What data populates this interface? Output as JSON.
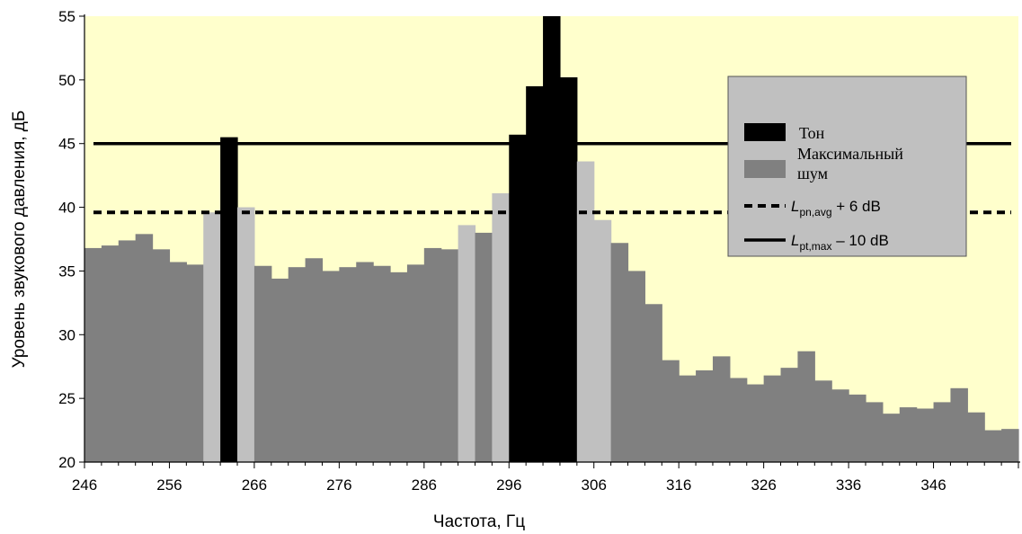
{
  "chart_data": {
    "type": "bar",
    "xlabel": "Частота, Гц",
    "ylabel": "Уровень звукового давления, дБ",
    "x_ticks": [
      "246",
      "256",
      "266",
      "276",
      "286",
      "296",
      "306",
      "316",
      "326",
      "336",
      "346"
    ],
    "y_ticks": [
      "20",
      "25",
      "30",
      "35",
      "40",
      "45",
      "50",
      "55"
    ],
    "xlim": [
      246,
      356
    ],
    "ylim": [
      20,
      55
    ],
    "bin_width_hz": 2,
    "bars": [
      {
        "x": 246,
        "value": 36.8,
        "kind": "noise"
      },
      {
        "x": 248,
        "value": 37.0,
        "kind": "noise"
      },
      {
        "x": 250,
        "value": 37.4,
        "kind": "noise"
      },
      {
        "x": 252,
        "value": 37.9,
        "kind": "noise"
      },
      {
        "x": 254,
        "value": 36.7,
        "kind": "noise"
      },
      {
        "x": 256,
        "value": 35.7,
        "kind": "noise"
      },
      {
        "x": 258,
        "value": 35.5,
        "kind": "noise"
      },
      {
        "x": 260,
        "value": 39.6,
        "kind": "neighbor"
      },
      {
        "x": 262,
        "value": 45.5,
        "kind": "tone"
      },
      {
        "x": 264,
        "value": 40.0,
        "kind": "neighbor"
      },
      {
        "x": 266,
        "value": 35.4,
        "kind": "noise"
      },
      {
        "x": 268,
        "value": 34.4,
        "kind": "noise"
      },
      {
        "x": 270,
        "value": 35.3,
        "kind": "noise"
      },
      {
        "x": 272,
        "value": 36.0,
        "kind": "noise"
      },
      {
        "x": 274,
        "value": 35.0,
        "kind": "noise"
      },
      {
        "x": 276,
        "value": 35.3,
        "kind": "noise"
      },
      {
        "x": 278,
        "value": 35.7,
        "kind": "noise"
      },
      {
        "x": 280,
        "value": 35.4,
        "kind": "noise"
      },
      {
        "x": 282,
        "value": 34.9,
        "kind": "noise"
      },
      {
        "x": 284,
        "value": 35.5,
        "kind": "noise"
      },
      {
        "x": 286,
        "value": 36.8,
        "kind": "noise"
      },
      {
        "x": 288,
        "value": 36.7,
        "kind": "noise"
      },
      {
        "x": 290,
        "value": 38.6,
        "kind": "neighbor"
      },
      {
        "x": 292,
        "value": 38.0,
        "kind": "noise"
      },
      {
        "x": 294,
        "value": 41.1,
        "kind": "neighbor"
      },
      {
        "x": 296,
        "value": 45.7,
        "kind": "tone"
      },
      {
        "x": 298,
        "value": 49.5,
        "kind": "tone"
      },
      {
        "x": 300,
        "value": 55.0,
        "kind": "tone"
      },
      {
        "x": 302,
        "value": 50.2,
        "kind": "tone"
      },
      {
        "x": 304,
        "value": 43.6,
        "kind": "neighbor"
      },
      {
        "x": 306,
        "value": 39.0,
        "kind": "neighbor"
      },
      {
        "x": 308,
        "value": 37.2,
        "kind": "noise"
      },
      {
        "x": 310,
        "value": 35.0,
        "kind": "noise"
      },
      {
        "x": 312,
        "value": 32.4,
        "kind": "noise"
      },
      {
        "x": 314,
        "value": 28.0,
        "kind": "noise"
      },
      {
        "x": 316,
        "value": 26.8,
        "kind": "noise"
      },
      {
        "x": 318,
        "value": 27.2,
        "kind": "noise"
      },
      {
        "x": 320,
        "value": 28.3,
        "kind": "noise"
      },
      {
        "x": 322,
        "value": 26.6,
        "kind": "noise"
      },
      {
        "x": 324,
        "value": 26.1,
        "kind": "noise"
      },
      {
        "x": 326,
        "value": 26.8,
        "kind": "noise"
      },
      {
        "x": 328,
        "value": 27.4,
        "kind": "noise"
      },
      {
        "x": 330,
        "value": 28.7,
        "kind": "noise"
      },
      {
        "x": 332,
        "value": 26.4,
        "kind": "noise"
      },
      {
        "x": 334,
        "value": 25.7,
        "kind": "noise"
      },
      {
        "x": 336,
        "value": 25.3,
        "kind": "noise"
      },
      {
        "x": 338,
        "value": 24.7,
        "kind": "noise"
      },
      {
        "x": 340,
        "value": 23.8,
        "kind": "noise"
      },
      {
        "x": 342,
        "value": 24.3,
        "kind": "noise"
      },
      {
        "x": 344,
        "value": 24.2,
        "kind": "noise"
      },
      {
        "x": 346,
        "value": 24.7,
        "kind": "noise"
      },
      {
        "x": 348,
        "value": 25.8,
        "kind": "noise"
      },
      {
        "x": 350,
        "value": 23.9,
        "kind": "noise"
      },
      {
        "x": 352,
        "value": 22.5,
        "kind": "noise"
      },
      {
        "x": 354,
        "value": 22.6,
        "kind": "noise"
      }
    ],
    "reference_lines": [
      {
        "y": 45.0,
        "style": "solid"
      },
      {
        "y": 39.6,
        "style": "dashed"
      }
    ],
    "legend": {
      "placement": "top-right",
      "items": [
        {
          "label": "Тон",
          "swatch": "tone"
        },
        {
          "label_line1": "Максимальный",
          "label_line2": "шум",
          "swatch": "noise"
        },
        {
          "label_main": "L",
          "label_sub": "pn,avg",
          "label_tail": " + 6 dB",
          "swatch": "dashed"
        },
        {
          "label_main": "L",
          "label_sub": "pt,max",
          "label_tail": " – 10 dB",
          "swatch": "solid"
        }
      ]
    },
    "colors": {
      "background": "#ffffcc",
      "tone": "#000000",
      "noise": "#808080",
      "neighbor": "#c0c0c0",
      "legend_bg": "#c0c0c0"
    },
    "grid": false
  }
}
